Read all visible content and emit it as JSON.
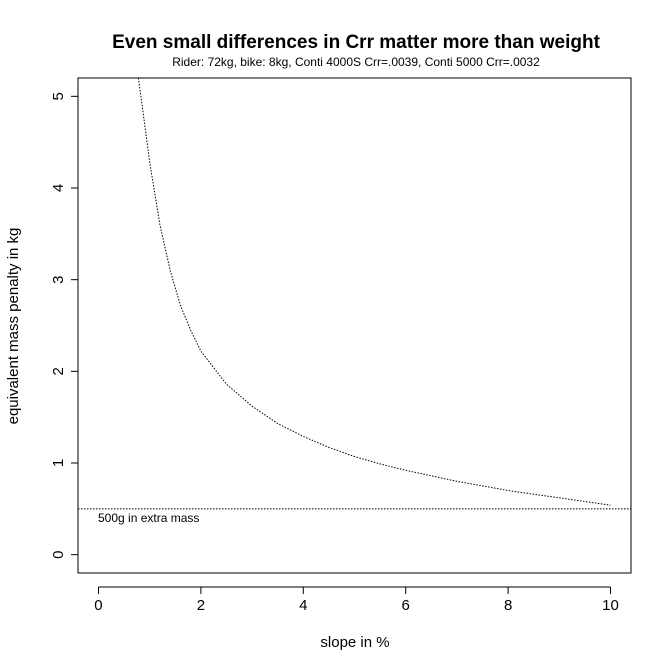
{
  "chart_data": {
    "type": "line",
    "title": "Even small differences in Crr matter more than weight",
    "subtitle": "Rider: 72kg, bike: 8kg, Conti 4000S Crr=.0039, Conti 5000 Crr=.0032",
    "xlabel": "slope in %",
    "ylabel": "equivalent mass penalty in kg",
    "xlim": [
      -0.4,
      10.4
    ],
    "ylim": [
      -0.2,
      5.2
    ],
    "x_ticks": [
      0,
      2,
      4,
      6,
      8,
      10
    ],
    "y_ticks": [
      0,
      1,
      2,
      3,
      4,
      5
    ],
    "series": [
      {
        "name": "equivalent mass penalty",
        "style": "dotted",
        "x": [
          0.78,
          0.9,
          1.0,
          1.2,
          1.4,
          1.6,
          1.8,
          2.0,
          2.5,
          3.0,
          3.5,
          4.0,
          4.5,
          5.0,
          5.5,
          6.0,
          6.5,
          7.0,
          7.5,
          8.0,
          8.5,
          9.0,
          9.5,
          10.0
        ],
        "values": [
          5.2,
          4.7,
          4.28,
          3.6,
          3.1,
          2.72,
          2.45,
          2.22,
          1.86,
          1.62,
          1.43,
          1.29,
          1.17,
          1.07,
          0.99,
          0.92,
          0.86,
          0.8,
          0.75,
          0.7,
          0.66,
          0.62,
          0.58,
          0.54
        ]
      }
    ],
    "reference_line": {
      "y": 0.5,
      "style": "dotted",
      "label": "500g in extra mass"
    }
  }
}
